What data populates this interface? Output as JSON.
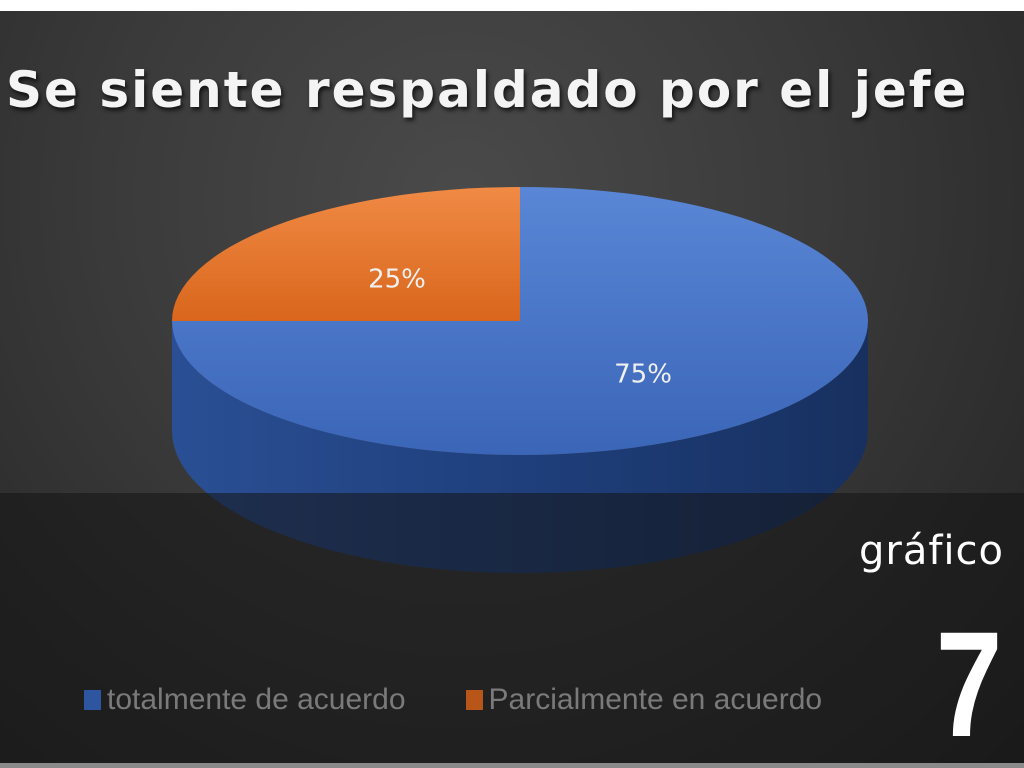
{
  "chart_data": {
    "type": "pie",
    "style": "3d",
    "title": "Se siente respaldado por el jefe",
    "slices": [
      {
        "name": "totalmente de acuerdo",
        "value": 75,
        "label": "75%",
        "color": "#4472c4"
      },
      {
        "name": "Parcialmente en acuerdo",
        "value": 25,
        "label": "25%",
        "color": "#ed7d31"
      }
    ],
    "legend_position": "bottom"
  },
  "slide": {
    "caption": "gráfico",
    "number": "7"
  }
}
